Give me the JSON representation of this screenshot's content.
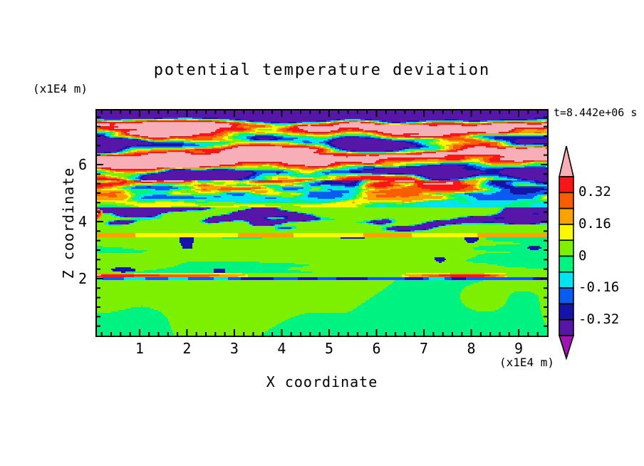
{
  "page": {
    "background": "#FFFFFF",
    "text_color": "#000000"
  },
  "chart_data": {
    "type": "heatmap",
    "title": "potential temperature deviation",
    "xlabel": "X coordinate",
    "ylabel": "Z coordinate",
    "x_unit_label": "(x1E4 m)",
    "z_unit_label": "(x1E4 m)",
    "time_annotation": "t=8.442e+06 s",
    "x_range": [
      0.1,
      9.6
    ],
    "z_range": [
      0.0,
      7.9
    ],
    "x_ticks": [
      "1",
      "2",
      "3",
      "4",
      "5",
      "6",
      "7",
      "8",
      "9"
    ],
    "x_tick_values": [
      1,
      2,
      3,
      4,
      5,
      6,
      7,
      8,
      9
    ],
    "x_minor_interval": 0.2,
    "z_ticks": [
      "2",
      "4",
      "6"
    ],
    "z_tick_values": [
      2,
      4,
      6
    ],
    "z_minor_interval": 0.33333,
    "grid": false,
    "legend_position": "right",
    "colorbar": {
      "tick_labels": [
        "0.32",
        "0.16",
        "0",
        "-0.16",
        "-0.32"
      ],
      "tick_values": [
        0.32,
        0.16,
        0,
        -0.16,
        -0.32
      ],
      "levels": [
        -0.4,
        -0.32,
        -0.24,
        -0.16,
        -0.08,
        0,
        0.08,
        0.16,
        0.24,
        0.32,
        0.4
      ],
      "segment_colors_top_to_bottom": [
        "#F81616",
        "#F85E00",
        "#FAA300",
        "#FAF800",
        "#7CF000",
        "#00F280",
        "#00E4F2",
        "#0A5CF0",
        "#1414A8",
        "#5617A8"
      ],
      "over_color": "#F8AEB6",
      "under_color": "#A014B4"
    },
    "field_bands": [
      {
        "name": "convective-boundary-layer",
        "z_from": 0.0,
        "z_to": 1.95,
        "description": "spring-green background cells with chartreuse convective plumes hanging from the capping line",
        "values": {
          "background": -0.045,
          "plume": 0.045
        }
      },
      {
        "name": "capping-inversion-line",
        "z_from": 1.95,
        "z_to": 2.2,
        "description": "thin navy/blue line at z=2 broken by warm lenses (yellow-orange-red with pink cores)",
        "values": {
          "line": -0.34,
          "lens_peak": 0.55
        }
      },
      {
        "name": "lower-stratified-layer",
        "z_from": 2.2,
        "z_to": 3.45,
        "description": "chartreuse layer with spring-green horizontal streaks and sparse navy specks",
        "values": {
          "base": 0.045,
          "streak": -0.045,
          "speck": -0.3
        }
      },
      {
        "name": "yellow-shear-line",
        "z_from": 3.45,
        "z_to": 3.58,
        "description": "continuous yellow line across the whole width",
        "values": {
          "line": 0.12
        }
      },
      {
        "name": "upper-stratified-layer",
        "z_from": 3.58,
        "z_to": 4.5,
        "description": "chartreuse layer with diagonal chains of navy/dark-violet blobs, cyan fringes and warm specks",
        "values": {
          "base": 0.04,
          "blob": -0.37,
          "speck": 0.25
        }
      },
      {
        "name": "transition-zone",
        "z_from": 4.5,
        "z_to": 5.45,
        "description": "growing turbulence: red/orange streaks and navy/violet patches over green",
        "values": {
          "base": 0.02,
          "amplitude": 0.46
        }
      },
      {
        "name": "wave-breaking-zone",
        "z_from": 5.45,
        "z_to": 7.9,
        "description": "interleaved pink (>0.4) and dark-violet (<-0.4) billows with rainbow fringes; solid violet strip at the top edge",
        "values": {
          "amplitude": 0.5,
          "top_bias": -0.9
        }
      }
    ]
  }
}
